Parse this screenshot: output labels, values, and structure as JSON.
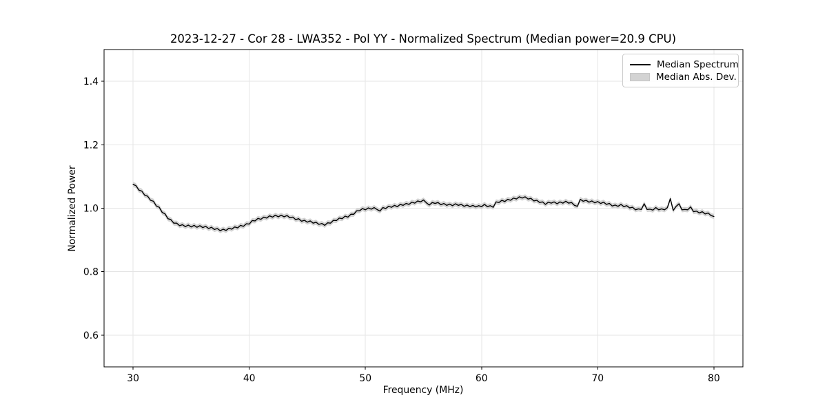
{
  "figure": {
    "background": "#ffffff"
  },
  "colors": {
    "line": "#000000",
    "band": "#d3d3d3",
    "grid": "#e5e5e5",
    "spine": "#000000",
    "tick": "#000000",
    "legend_border": "#cccccc",
    "text": "#000000"
  },
  "chart_data": {
    "type": "line",
    "title": "2023-12-27 - Cor 28 - LWA352 - Pol YY - Normalized Spectrum (Median power=20.9 CPU)",
    "xlabel": "Frequency (MHz)",
    "ylabel": "Normalized Power",
    "xlim": [
      27.5,
      82.5
    ],
    "ylim": [
      0.5,
      1.5
    ],
    "x_tick_values": [
      30,
      40,
      50,
      60,
      70,
      80
    ],
    "x_tick_labels": [
      "30",
      "40",
      "50",
      "60",
      "70",
      "80"
    ],
    "y_tick_values": [
      0.6,
      0.8,
      1.0,
      1.2,
      1.4
    ],
    "y_tick_labels": [
      "0.6",
      "0.8",
      "1.0",
      "1.2",
      "1.4"
    ],
    "grid": true,
    "legend_position": "upper right",
    "series": [
      {
        "name": "Median Spectrum",
        "kind": "line",
        "color": "#000000",
        "x_start": 30.0,
        "x_step": 0.25,
        "values": [
          1.075,
          1.071,
          1.057,
          1.054,
          1.041,
          1.038,
          1.025,
          1.022,
          1.007,
          1.003,
          0.987,
          0.982,
          0.967,
          0.964,
          0.953,
          0.953,
          0.945,
          0.948,
          0.942,
          0.947,
          0.941,
          0.946,
          0.94,
          0.945,
          0.939,
          0.943,
          0.936,
          0.94,
          0.933,
          0.936,
          0.929,
          0.934,
          0.93,
          0.937,
          0.934,
          0.941,
          0.938,
          0.946,
          0.943,
          0.951,
          0.95,
          0.961,
          0.96,
          0.968,
          0.965,
          0.972,
          0.969,
          0.976,
          0.972,
          0.978,
          0.973,
          0.978,
          0.973,
          0.977,
          0.97,
          0.972,
          0.964,
          0.967,
          0.959,
          0.962,
          0.956,
          0.96,
          0.953,
          0.956,
          0.949,
          0.952,
          0.946,
          0.954,
          0.953,
          0.962,
          0.961,
          0.969,
          0.967,
          0.975,
          0.972,
          0.981,
          0.981,
          0.992,
          0.992,
          0.999,
          0.995,
          1.001,
          0.997,
          1.002,
          0.996,
          0.991,
          1.002,
          0.999,
          1.006,
          1.003,
          1.009,
          1.005,
          1.012,
          1.009,
          1.015,
          1.012,
          1.019,
          1.016,
          1.023,
          1.02,
          1.026,
          1.017,
          1.01,
          1.018,
          1.015,
          1.018,
          1.011,
          1.015,
          1.009,
          1.013,
          1.008,
          1.014,
          1.009,
          1.012,
          1.006,
          1.01,
          1.005,
          1.009,
          1.004,
          1.008,
          1.005,
          1.012,
          1.005,
          1.008,
          1.003,
          1.02,
          1.018,
          1.025,
          1.021,
          1.028,
          1.025,
          1.032,
          1.029,
          1.036,
          1.032,
          1.036,
          1.029,
          1.031,
          1.023,
          1.025,
          1.018,
          1.02,
          1.012,
          1.019,
          1.016,
          1.02,
          1.014,
          1.02,
          1.016,
          1.022,
          1.016,
          1.018,
          1.009,
          1.006,
          1.028,
          1.022,
          1.025,
          1.019,
          1.023,
          1.017,
          1.021,
          1.015,
          1.019,
          1.012,
          1.015,
          1.007,
          1.01,
          1.006,
          1.012,
          1.005,
          1.008,
          1.001,
          1.003,
          0.995,
          0.998,
          0.996,
          1.014,
          0.996,
          0.997,
          0.994,
          1.002,
          0.995,
          0.998,
          0.995,
          1.002,
          1.03,
          0.993,
          1.006,
          1.014,
          0.995,
          0.996,
          0.995,
          1.004,
          0.989,
          0.991,
          0.985,
          0.989,
          0.982,
          0.985,
          0.977,
          0.974
        ]
      },
      {
        "name": "Median Abs. Dev.",
        "kind": "band",
        "color": "#d3d3d3",
        "around": "Median Spectrum",
        "halfwidth": 0.008
      }
    ]
  }
}
